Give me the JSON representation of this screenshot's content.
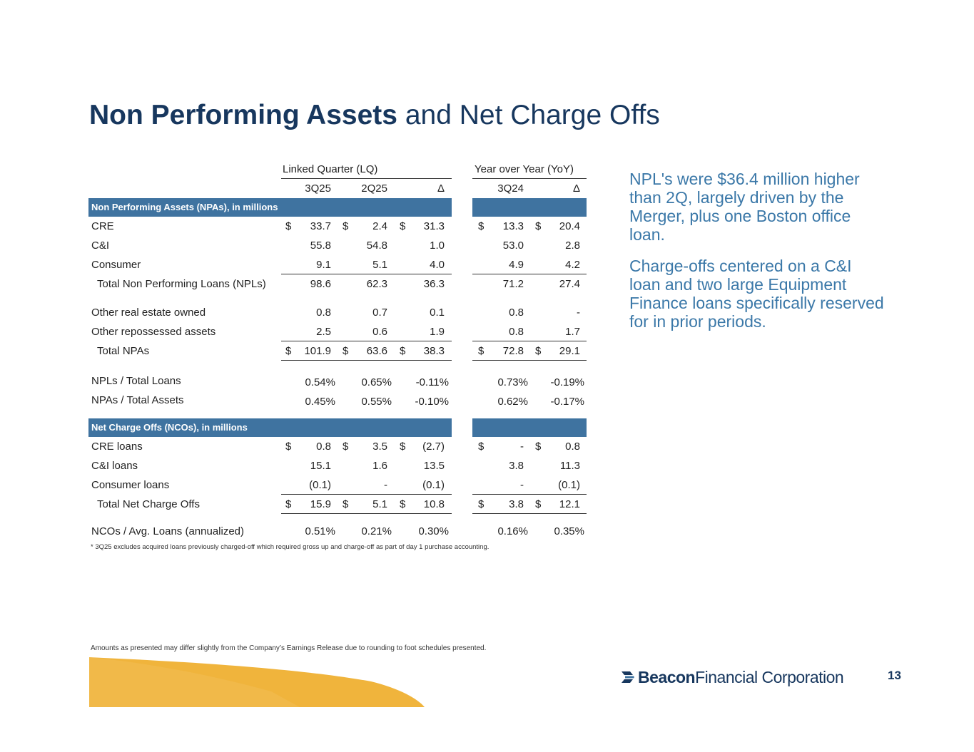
{
  "title": {
    "bold": "Non Performing Assets",
    "rest": "and Net Charge Offs"
  },
  "headers": {
    "lq_group": "Linked Quarter (LQ)",
    "yoy_group": "Year over Year (YoY)",
    "col_3q25": "3Q25",
    "col_2q25": "2Q25",
    "col_delta_lq": "Δ",
    "col_3q24": "3Q24",
    "col_delta_yoy": "Δ"
  },
  "npa_section": {
    "band_label": "Non Performing Assets (NPAs), in millions",
    "rows": [
      {
        "label": "CRE",
        "c1": "33.7",
        "c2": "2.4",
        "c3": "31.3",
        "c4": "13.3",
        "c5": "20.4",
        "dollar": true
      },
      {
        "label": "C&I",
        "c1": "55.8",
        "c2": "54.8",
        "c3": "1.0",
        "c4": "53.0",
        "c5": "2.8"
      },
      {
        "label": "Consumer",
        "c1": "9.1",
        "c2": "5.1",
        "c3": "4.0",
        "c4": "4.9",
        "c5": "4.2"
      },
      {
        "label": "Total Non Performing Loans (NPLs)",
        "c1": "98.6",
        "c2": "62.3",
        "c3": "36.3",
        "c4": "71.2",
        "c5": "27.4"
      },
      {
        "label": "Other real estate owned",
        "c1": "0.8",
        "c2": "0.7",
        "c3": "0.1",
        "c4": "0.8",
        "c5": "-"
      },
      {
        "label": "Other repossessed assets",
        "c1": "2.5",
        "c2": "0.6",
        "c3": "1.9",
        "c4": "0.8",
        "c5": "1.7"
      },
      {
        "label": "Total NPAs",
        "c1": "101.9",
        "c2": "63.6",
        "c3": "38.3",
        "c4": "72.8",
        "c5": "29.1",
        "dollar": true
      }
    ]
  },
  "ratios": [
    {
      "label": "NPLs / Total Loans",
      "c1": "0.54%",
      "c2": "0.65%",
      "c3": "-0.11%",
      "c4": "0.73%",
      "c5": "-0.19%"
    },
    {
      "label": "NPAs / Total Assets",
      "c1": "0.45%",
      "c2": "0.55%",
      "c3": "-0.10%",
      "c4": "0.62%",
      "c5": "-0.17%"
    }
  ],
  "nco_section": {
    "band_label": "Net Charge Offs (NCOs), in millions",
    "rows": [
      {
        "label": "CRE loans",
        "c1": "0.8",
        "c2": "3.5",
        "c3": "(2.7)",
        "c4": "-",
        "c5": "0.8",
        "dollar": true
      },
      {
        "label": "C&I loans",
        "c1": "15.1",
        "c2": "1.6",
        "c3": "13.5",
        "c4": "3.8",
        "c5": "11.3"
      },
      {
        "label": "Consumer loans",
        "c1": "(0.1)",
        "c2": "-",
        "c3": "(0.1)",
        "c4": "-",
        "c5": "(0.1)"
      },
      {
        "label": "Total Net Charge Offs",
        "c1": "15.9",
        "c2": "5.1",
        "c3": "10.8",
        "c4": "3.8",
        "c5": "12.1",
        "dollar": true
      },
      {
        "label": "NCOs / Avg. Loans (annualized)",
        "c1": "0.51%",
        "c2": "0.21%",
        "c3": "0.30%",
        "c4": "0.16%",
        "c5": "0.35%"
      }
    ]
  },
  "dollar_sign": "$",
  "side_text": {
    "p1": "NPL's were $36.4 million higher than 2Q, largely driven by the Merger, plus one Boston office loan.",
    "p2": "Charge-offs centered on a C&I loan and two large Equipment Finance loans specifically reserved for in prior periods."
  },
  "footnote": "* 3Q25 excludes acquired loans previously charged-off which required gross up and charge-off as part of day 1 purchase accounting.",
  "disclaimer": "Amounts as presented may differ slightly from the Company’s Earnings Release due to rounding to foot schedules presented.",
  "logo": {
    "bold": "Beacon",
    "rest": "Financial Corporation"
  },
  "page_number": "13",
  "colors": {
    "navy": "#17375e",
    "band": "#3f73a0",
    "accent_text": "#3b78a8",
    "wave": "#f0b43c"
  }
}
